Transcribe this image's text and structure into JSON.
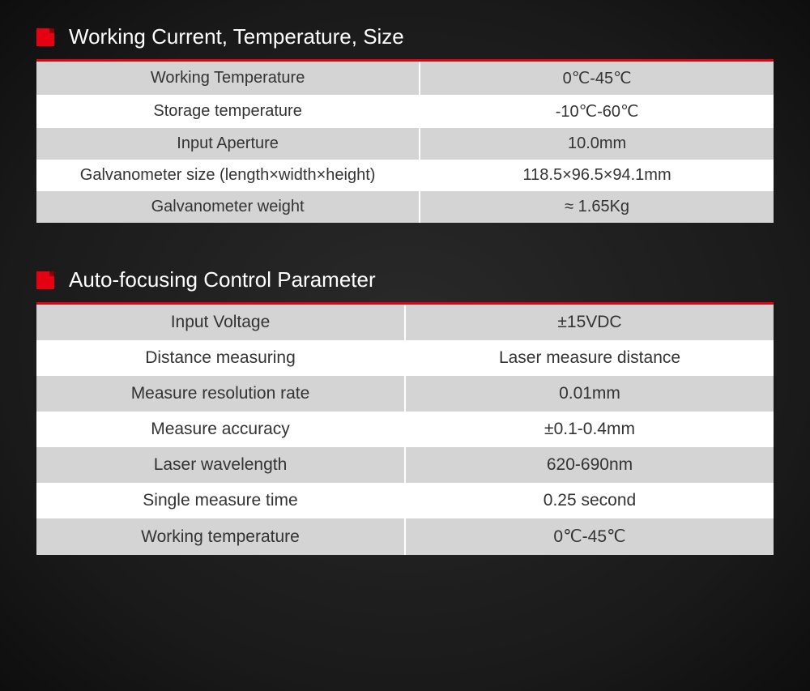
{
  "accent_color": "#e60012",
  "background_gradient": [
    "#2a2a2a",
    "#1a1a1a",
    "#0e0e0e"
  ],
  "row_colors": {
    "odd": "#d4d4d4",
    "even": "#ffffff"
  },
  "text_color": "#333333",
  "title_color": "#ffffff",
  "sections": {
    "section1": {
      "title": "Working Current, Temperature, Size",
      "rows": [
        {
          "label": "Working Temperature",
          "value": "0℃-45℃"
        },
        {
          "label": "Storage temperature",
          "value": "-10℃-60℃"
        },
        {
          "label": "Input Aperture",
          "value": "10.0mm"
        },
        {
          "label": "Galvanometer size (length×width×height)",
          "value": "118.5×96.5×94.1mm"
        },
        {
          "label": "Galvanometer weight",
          "value": "≈ 1.65Kg"
        }
      ]
    },
    "section2": {
      "title": "Auto-focusing Control Parameter",
      "rows": [
        {
          "label": "Input Voltage",
          "value": "±15VDC"
        },
        {
          "label": "Distance measuring",
          "value": "Laser measure distance"
        },
        {
          "label": "Measure resolution rate",
          "value": "0.01mm"
        },
        {
          "label": "Measure accuracy",
          "value": "±0.1-0.4mm"
        },
        {
          "label": "Laser wavelength",
          "value": "620-690nm"
        },
        {
          "label": "Single measure time",
          "value": "0.25 second"
        },
        {
          "label": "Working temperature",
          "value": "0℃-45℃"
        }
      ]
    }
  }
}
